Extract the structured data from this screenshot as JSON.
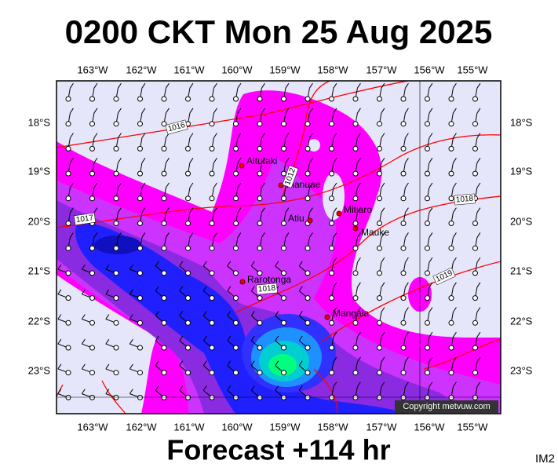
{
  "title": "0200 CKT Mon 25 Aug 2025",
  "longitudes": [
    "163°W",
    "162°W",
    "161°W",
    "160°W",
    "159°W",
    "158°W",
    "157°W",
    "156°W",
    "155°W"
  ],
  "latitudes": [
    "18°S",
    "19°S",
    "20°S",
    "21°S",
    "22°S",
    "23°S"
  ],
  "places": [
    "Aitutaki",
    "Manuae",
    "Atiu",
    "Mitiaro",
    "Mauke",
    "Rarotonga",
    "Mangaia"
  ],
  "isobar_labels": [
    "1016",
    "1012",
    "1018",
    "1017",
    "1018",
    "1019"
  ],
  "copyright": "Copyright metvuw.com",
  "footer": "Forecast +114 hr",
  "image_id": "IM2"
}
